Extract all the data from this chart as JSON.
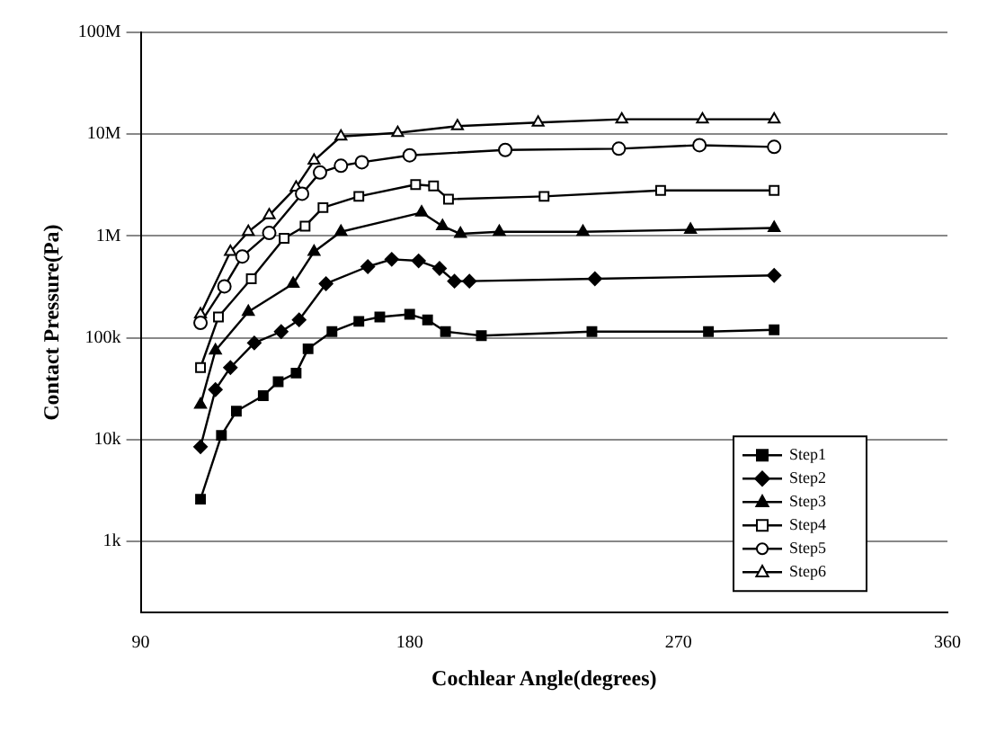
{
  "chart_data": {
    "type": "line",
    "xlabel": "Cochlear Angle(degrees)",
    "ylabel": "Contact Pressure(Pa)",
    "xlim": [
      90,
      360
    ],
    "xticks": [
      90,
      180,
      270,
      360
    ],
    "ylim": [
      200,
      100000000
    ],
    "yticks": [
      {
        "value": 1000,
        "label": "1k"
      },
      {
        "value": 10000,
        "label": "10k"
      },
      {
        "value": 100000,
        "label": "100k"
      },
      {
        "value": 1000000,
        "label": "1M"
      },
      {
        "value": 10000000,
        "label": "10M"
      },
      {
        "value": 100000000,
        "label": "100M"
      }
    ],
    "log": "y",
    "grid": "y",
    "legend": "bottom right",
    "line_style": "solid",
    "series": [
      {
        "name": "Step1",
        "color": "#000000",
        "marker": "square",
        "x": [
          110,
          117,
          122,
          131,
          136,
          142,
          146,
          154,
          163,
          170,
          180,
          186,
          192,
          204,
          241,
          280,
          302
        ],
        "values": [
          2600,
          11000,
          19000,
          27000,
          37000,
          45000,
          78000,
          115000,
          145000,
          160000,
          170000,
          150000,
          115000,
          105000,
          115000,
          115000,
          120000
        ]
      },
      {
        "name": "Step2",
        "color": "#000000",
        "marker": "diamond",
        "x": [
          110,
          115,
          120,
          128,
          137,
          143,
          152,
          166,
          174,
          183,
          190,
          195,
          200,
          242,
          302
        ],
        "values": [
          8500,
          31000,
          51000,
          89000,
          115000,
          150000,
          340000,
          500000,
          590000,
          570000,
          480000,
          360000,
          360000,
          380000,
          410000
        ]
      },
      {
        "name": "Step3",
        "color": "#000000",
        "marker": "triangle",
        "x": [
          110,
          115,
          126,
          141,
          148,
          157,
          184,
          191,
          197,
          210,
          238,
          274,
          302
        ],
        "values": [
          22000,
          75000,
          180000,
          340000,
          700000,
          1100000,
          1700000,
          1250000,
          1050000,
          1100000,
          1100000,
          1150000,
          1200000
        ]
      },
      {
        "name": "Step4",
        "color": "#000000",
        "marker": "square",
        "x": [
          110,
          116,
          127,
          138,
          145,
          151,
          163,
          182,
          188,
          193,
          225,
          264,
          302
        ],
        "values": [
          51000,
          160000,
          380000,
          950000,
          1250000,
          1900000,
          2450000,
          3200000,
          3100000,
          2300000,
          2450000,
          2800000,
          2800000
        ]
      },
      {
        "name": "Step5",
        "color": "#000000",
        "marker": "circle",
        "x": [
          110,
          118,
          124,
          133,
          144,
          150,
          157,
          164,
          180,
          212,
          250,
          277,
          302
        ],
        "values": [
          140000,
          320000,
          630000,
          1070000,
          2600000,
          4200000,
          4900000,
          5300000,
          6200000,
          7000000,
          7200000,
          7800000,
          7500000
        ]
      },
      {
        "name": "Step6",
        "color": "#000000",
        "marker": "triangle",
        "x": [
          110,
          120,
          126,
          133,
          142,
          148,
          157,
          176,
          196,
          223,
          251,
          278,
          302
        ],
        "values": [
          170000,
          700000,
          1100000,
          1600000,
          3000000,
          5500000,
          9500000,
          10300000,
          12000000,
          13000000,
          14000000,
          14000000,
          14000000
        ]
      }
    ]
  }
}
